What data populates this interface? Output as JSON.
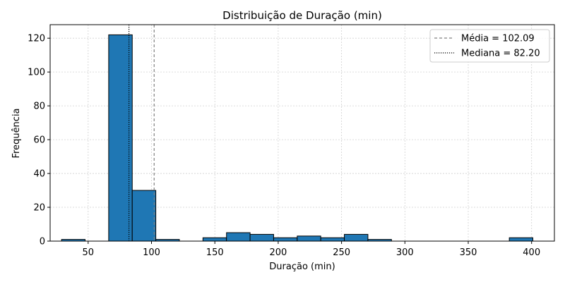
{
  "chart_data": {
    "type": "bar",
    "title": "Distribuição de Duração (min)",
    "xlabel": "Duração (min)",
    "ylabel": "Frequência",
    "xlim": [
      20,
      418
    ],
    "ylim": [
      0,
      128
    ],
    "xticks": [
      50,
      100,
      150,
      200,
      250,
      300,
      350,
      400
    ],
    "yticks": [
      0,
      20,
      40,
      60,
      80,
      100,
      120
    ],
    "grid": true,
    "legend_position": "top-right",
    "bar_color": "#1f77b4",
    "bar_edge_color": "#000000",
    "bins": [
      {
        "x0": 29.0,
        "x1": 47.6,
        "count": 1
      },
      {
        "x0": 47.6,
        "x1": 66.2,
        "count": 0
      },
      {
        "x0": 66.2,
        "x1": 84.8,
        "count": 122
      },
      {
        "x0": 84.8,
        "x1": 103.4,
        "count": 30
      },
      {
        "x0": 103.4,
        "x1": 122.0,
        "count": 1
      },
      {
        "x0": 122.0,
        "x1": 140.6,
        "count": 0
      },
      {
        "x0": 140.6,
        "x1": 159.2,
        "count": 2
      },
      {
        "x0": 159.2,
        "x1": 177.8,
        "count": 5
      },
      {
        "x0": 177.8,
        "x1": 196.4,
        "count": 4
      },
      {
        "x0": 196.4,
        "x1": 215.0,
        "count": 2
      },
      {
        "x0": 215.0,
        "x1": 233.6,
        "count": 3
      },
      {
        "x0": 233.6,
        "x1": 252.2,
        "count": 2
      },
      {
        "x0": 252.2,
        "x1": 270.8,
        "count": 4
      },
      {
        "x0": 270.8,
        "x1": 289.4,
        "count": 1
      },
      {
        "x0": 289.4,
        "x1": 308.0,
        "count": 0
      },
      {
        "x0": 308.0,
        "x1": 326.6,
        "count": 0
      },
      {
        "x0": 326.6,
        "x1": 345.2,
        "count": 0
      },
      {
        "x0": 345.2,
        "x1": 363.8,
        "count": 0
      },
      {
        "x0": 363.8,
        "x1": 382.4,
        "count": 0
      },
      {
        "x0": 382.4,
        "x1": 401.0,
        "count": 2
      }
    ],
    "reference_lines": [
      {
        "label": "Média = 102.09",
        "value": 102.09,
        "style": "dashed",
        "color": "#808080"
      },
      {
        "label": "Mediana = 82.20",
        "value": 82.2,
        "style": "dotted",
        "color": "#000000"
      }
    ]
  }
}
